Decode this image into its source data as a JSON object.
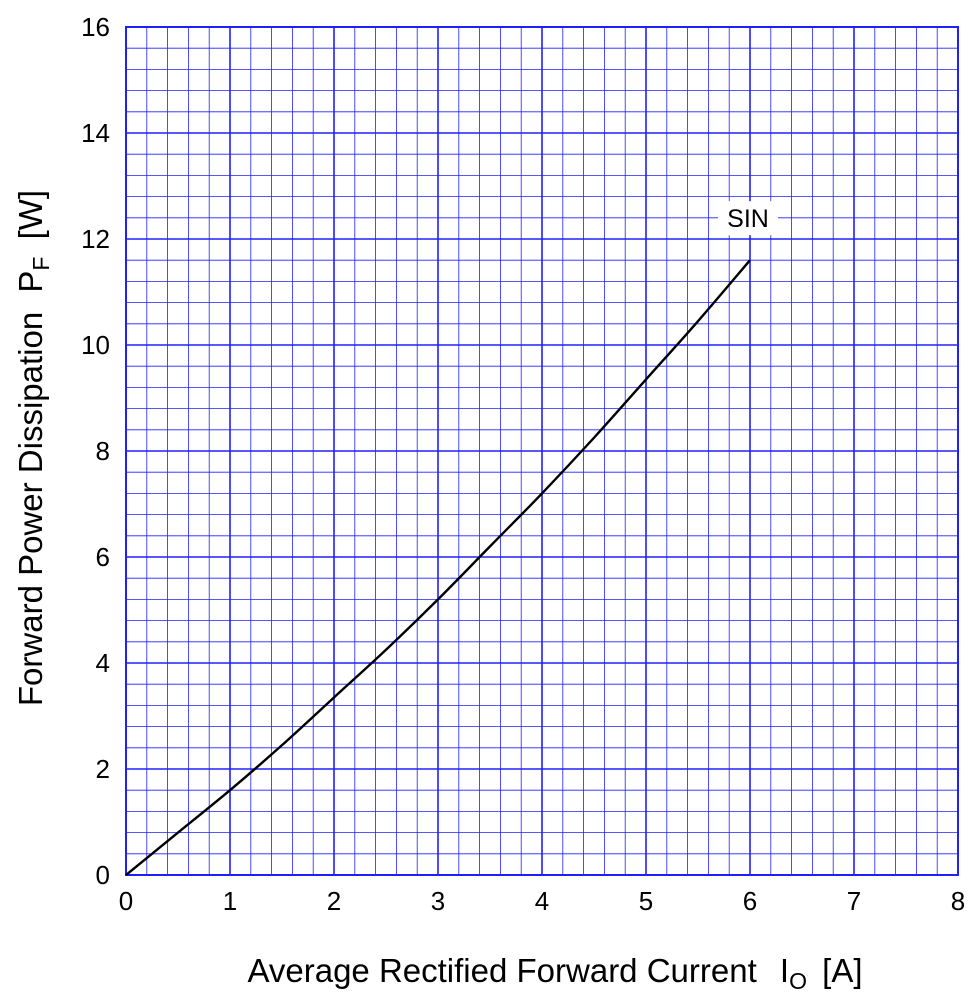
{
  "chart_data": {
    "type": "line",
    "xlabel": {
      "main": "Average Rectified Forward Current ",
      "symbol": "I",
      "subscript": "O",
      "unit": " [A]"
    },
    "ylabel": {
      "main": "Forward Power Dissipation ",
      "symbol": "P",
      "subscript": "F",
      "unit": " [W]"
    },
    "xlim": [
      0,
      8
    ],
    "ylim": [
      0,
      16
    ],
    "x_ticks": [
      "0",
      "1",
      "2",
      "3",
      "4",
      "5",
      "6",
      "7",
      "8"
    ],
    "y_ticks": [
      "0",
      "2",
      "4",
      "6",
      "8",
      "10",
      "12",
      "14",
      "16"
    ],
    "x_tick_values": [
      0,
      1,
      2,
      3,
      4,
      5,
      6,
      7,
      8
    ],
    "y_tick_values": [
      0,
      2,
      4,
      6,
      8,
      10,
      12,
      14,
      16
    ],
    "x_minor_step": 0.2,
    "y_minor_step": 0.4,
    "grid": true,
    "grid_color": "#2020ff",
    "line_color": "#000000",
    "series": [
      {
        "name": "SIN",
        "x": [
          0,
          0.5,
          1.0,
          1.5,
          2.0,
          2.5,
          3.0,
          3.5,
          4.0,
          4.5,
          5.0,
          5.5,
          6.0
        ],
        "y": [
          0,
          0.8,
          1.6,
          2.45,
          3.35,
          4.25,
          5.2,
          6.2,
          7.2,
          8.25,
          9.35,
          10.45,
          11.6
        ]
      }
    ]
  }
}
